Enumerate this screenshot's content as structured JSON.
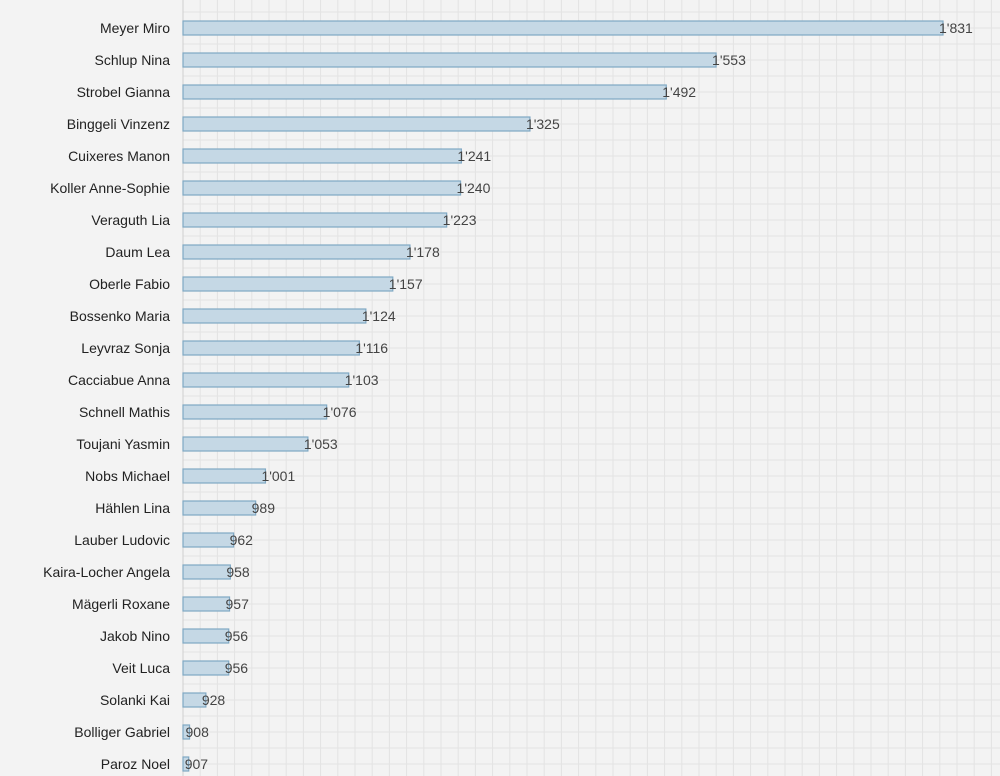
{
  "chart_data": {
    "type": "bar",
    "orientation": "horizontal",
    "categories": [
      "Meyer Miro",
      "Schlup Nina",
      "Strobel Gianna",
      "Binggeli Vinzenz",
      "Cuixeres Manon",
      "Koller Anne-Sophie",
      "Veraguth Lia",
      "Daum Lea",
      "Oberle Fabio",
      "Bossenko Maria",
      "Leyvraz Sonja",
      "Cacciabue Anna",
      "Schnell Mathis",
      "Toujani Yasmin",
      "Nobs Michael",
      "Hählen Lina",
      "Lauber Ludovic",
      "Kaira-Locher Angela",
      "Mägerli Roxane",
      "Jakob Nino",
      "Veit Luca",
      "Solanki Kai",
      "Bolliger Gabriel",
      "Paroz Noel"
    ],
    "values": [
      1831,
      1553,
      1492,
      1325,
      1241,
      1240,
      1223,
      1178,
      1157,
      1124,
      1116,
      1103,
      1076,
      1053,
      1001,
      989,
      962,
      958,
      957,
      956,
      956,
      928,
      908,
      907
    ],
    "value_labels": [
      "1'831",
      "1'553",
      "1'492",
      "1'325",
      "1'241",
      "1'240",
      "1'223",
      "1'178",
      "1'157",
      "1'124",
      "1'116",
      "1'103",
      "1'076",
      "1'053",
      "1'001",
      "989",
      "962",
      "958",
      "957",
      "956",
      "956",
      "928",
      "908",
      "907"
    ],
    "xlim": [
      900,
      1850
    ],
    "grid": true,
    "title": "",
    "xlabel": "",
    "ylabel": "",
    "colors": {
      "bar_fill": "#c5d8e5",
      "bar_stroke": "#7fa8c4",
      "background": "#f3f3f3",
      "grid": "#e3e3e3"
    }
  }
}
